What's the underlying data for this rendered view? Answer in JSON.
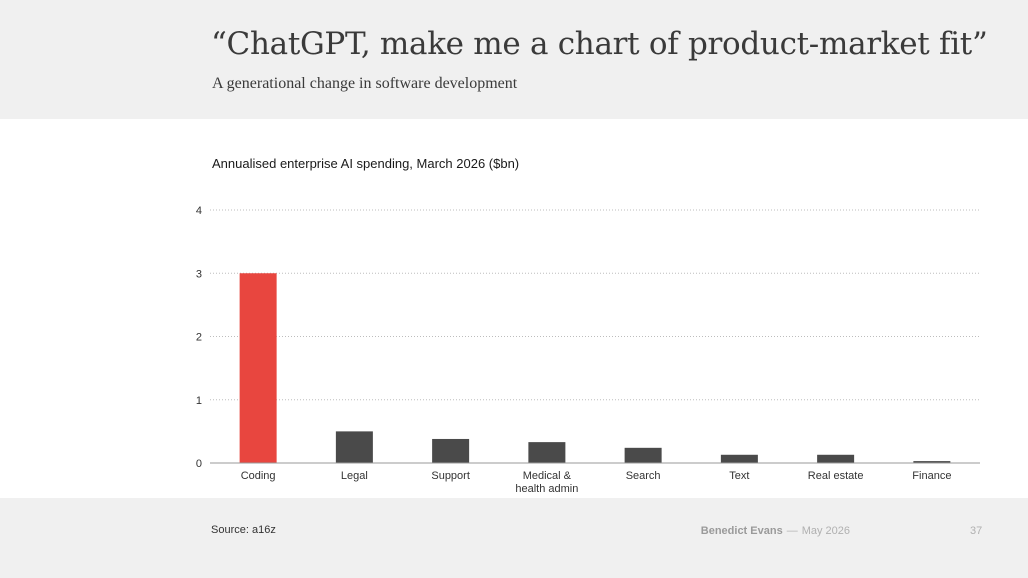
{
  "slide": {
    "title": "“ChatGPT, make me a chart of product-market fit”",
    "subtitle": "A generational change in software development"
  },
  "chart_data": {
    "type": "bar",
    "title": "Annualised enterprise AI spending, March 2026 ($bn)",
    "categories": [
      "Coding",
      "Legal",
      "Support",
      "Medical &\nhealth admin",
      "Search",
      "Text",
      "Real estate",
      "Finance"
    ],
    "values": [
      3.0,
      0.5,
      0.38,
      0.33,
      0.24,
      0.13,
      0.13,
      0.03
    ],
    "xlabel": "",
    "ylabel": "",
    "ylim": [
      0,
      4
    ],
    "yticks": [
      0,
      1,
      2,
      3,
      4
    ],
    "grid": true,
    "bar_colors": [
      "#e8463f",
      "#4a4a4a",
      "#4a4a4a",
      "#4a4a4a",
      "#4a4a4a",
      "#4a4a4a",
      "#4a4a4a",
      "#4a4a4a"
    ]
  },
  "footer": {
    "source": "Source: a16z",
    "author": "Benedict Evans",
    "separator": "—",
    "date": "May 2026",
    "page": "37"
  }
}
